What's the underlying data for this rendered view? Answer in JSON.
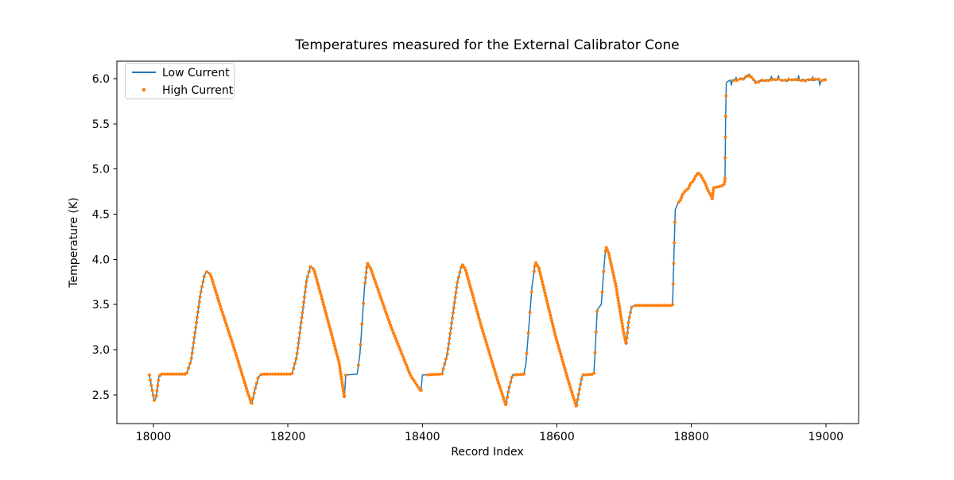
{
  "chart_data": {
    "type": "line",
    "title": "Temperatures measured for the External Calibrator Cone",
    "xlabel": "Record Index",
    "ylabel": "Temperature (K)",
    "xlim": [
      17945.6,
      19048.7
    ],
    "ylim": [
      2.183,
      6.193
    ],
    "xticks": [
      18000,
      18200,
      18400,
      18600,
      18800,
      19000
    ],
    "yticks": [
      2.5,
      3.0,
      3.5,
      4.0,
      4.5,
      5.0,
      5.5,
      6.0
    ],
    "grid": false,
    "background": "#ffffff",
    "legend": {
      "position": "upper-left",
      "entries": [
        {
          "label": "Low Current",
          "color": "#1f77b4",
          "marker": "line"
        },
        {
          "label": "High Current",
          "color": "#ff7f0e",
          "marker": "dot"
        }
      ]
    },
    "series": [
      {
        "name": "Low Current",
        "type": "line",
        "color": "#1f77b4",
        "linewidth": 1.5
      },
      {
        "name": "High Current",
        "type": "scatter",
        "color": "#ff7f0e",
        "markersize": 2
      }
    ],
    "note": "Both series overlap: the orange High Current markers trace the same temperature record as the blue Low Current line; blue shows through where markers are sparse (steep ramps) and as noise ticks on the 6 K plateau.",
    "keypoints_format": "[record_index, temperature_K, segment_style]",
    "segment_styles": {
      "0": "dense markers",
      "1": "steep ramp, sparse markers",
      "2": "noisy plateau",
      "3": "medium marker spacing"
    },
    "keypoints": [
      [
        17994,
        2.72,
        0
      ],
      [
        17998,
        2.56,
        3
      ],
      [
        18001,
        2.44,
        3
      ],
      [
        18004,
        2.47,
        3
      ],
      [
        18008,
        2.7,
        3
      ],
      [
        18011,
        2.73,
        0
      ],
      [
        18049,
        2.73,
        0
      ],
      [
        18056,
        2.88,
        3
      ],
      [
        18070,
        3.62,
        3
      ],
      [
        18076,
        3.83,
        3
      ],
      [
        18080,
        3.87,
        3
      ],
      [
        18085,
        3.83,
        0
      ],
      [
        18100,
        3.47,
        0
      ],
      [
        18122,
        2.97,
        0
      ],
      [
        18140,
        2.53,
        0
      ],
      [
        18146,
        2.4,
        0
      ],
      [
        18151,
        2.56,
        3
      ],
      [
        18156,
        2.7,
        3
      ],
      [
        18161,
        2.73,
        0
      ],
      [
        18206,
        2.73,
        0
      ],
      [
        18213,
        2.92,
        3
      ],
      [
        18228,
        3.78,
        3
      ],
      [
        18234,
        3.93,
        3
      ],
      [
        18239,
        3.88,
        0
      ],
      [
        18256,
        3.42,
        0
      ],
      [
        18276,
        2.86,
        0
      ],
      [
        18284,
        2.47,
        0
      ],
      [
        18286,
        2.72,
        1
      ],
      [
        18303,
        2.73,
        0
      ],
      [
        18307,
        2.95,
        1
      ],
      [
        18314,
        3.7,
        1
      ],
      [
        18318,
        3.96,
        3
      ],
      [
        18323,
        3.9,
        0
      ],
      [
        18352,
        3.28,
        0
      ],
      [
        18382,
        2.72,
        0
      ],
      [
        18398,
        2.54,
        0
      ],
      [
        18400,
        2.72,
        1
      ],
      [
        18429,
        2.73,
        0
      ],
      [
        18437,
        2.95,
        3
      ],
      [
        18452,
        3.75,
        3
      ],
      [
        18459,
        3.95,
        3
      ],
      [
        18464,
        3.89,
        0
      ],
      [
        18488,
        3.25,
        0
      ],
      [
        18512,
        2.66,
        0
      ],
      [
        18524,
        2.39,
        0
      ],
      [
        18529,
        2.58,
        3
      ],
      [
        18534,
        2.72,
        3
      ],
      [
        18551,
        2.73,
        0
      ],
      [
        18554,
        2.85,
        1
      ],
      [
        18563,
        3.7,
        1
      ],
      [
        18568,
        3.97,
        3
      ],
      [
        18573,
        3.91,
        0
      ],
      [
        18598,
        3.15,
        0
      ],
      [
        18618,
        2.63,
        0
      ],
      [
        18629,
        2.37,
        0
      ],
      [
        18634,
        2.58,
        3
      ],
      [
        18638,
        2.72,
        3
      ],
      [
        18655,
        2.73,
        0
      ],
      [
        18657,
        3.0,
        1
      ],
      [
        18660,
        3.44,
        1
      ],
      [
        18666,
        3.5,
        0
      ],
      [
        18668,
        3.7,
        1
      ],
      [
        18671,
        4.0,
        1
      ],
      [
        18673,
        4.14,
        3
      ],
      [
        18677,
        4.07,
        0
      ],
      [
        18688,
        3.7,
        0
      ],
      [
        18699,
        3.2,
        0
      ],
      [
        18703,
        3.06,
        0
      ],
      [
        18707,
        3.33,
        3
      ],
      [
        18711,
        3.47,
        3
      ],
      [
        18715,
        3.49,
        0
      ],
      [
        18772,
        3.49,
        0
      ],
      [
        18774,
        4.05,
        1
      ],
      [
        18776,
        4.55,
        1
      ],
      [
        18780,
        4.62,
        3
      ],
      [
        18784,
        4.66,
        0
      ],
      [
        18787,
        4.72,
        0
      ],
      [
        18791,
        4.76,
        0
      ],
      [
        18795,
        4.78,
        0
      ],
      [
        18799,
        4.84,
        0
      ],
      [
        18803,
        4.87,
        0
      ],
      [
        18807,
        4.93,
        0
      ],
      [
        18810,
        4.96,
        0
      ],
      [
        18814,
        4.93,
        0
      ],
      [
        18820,
        4.85,
        0
      ],
      [
        18826,
        4.74,
        0
      ],
      [
        18829,
        4.71,
        0
      ],
      [
        18831,
        4.67,
        0
      ],
      [
        18833,
        4.79,
        0
      ],
      [
        18838,
        4.8,
        0
      ],
      [
        18844,
        4.81,
        0
      ],
      [
        18848,
        4.82,
        0
      ],
      [
        18850,
        4.87,
        0
      ],
      [
        18851,
        5.6,
        1
      ],
      [
        18852,
        5.95,
        1
      ],
      [
        18855,
        5.97,
        2
      ],
      [
        18862,
        5.98,
        2
      ],
      [
        18870,
        5.99,
        2
      ],
      [
        18878,
        6.0,
        2
      ],
      [
        18883,
        6.03,
        2
      ],
      [
        18887,
        6.04,
        2
      ],
      [
        18891,
        6.0,
        2
      ],
      [
        18896,
        5.96,
        2
      ],
      [
        18901,
        5.97,
        2
      ],
      [
        18910,
        5.98,
        2
      ],
      [
        18925,
        5.99,
        2
      ],
      [
        18940,
        5.98,
        2
      ],
      [
        18955,
        5.99,
        2
      ],
      [
        18970,
        5.98,
        2
      ],
      [
        18985,
        5.99,
        2
      ],
      [
        19000,
        5.98,
        2
      ]
    ]
  }
}
